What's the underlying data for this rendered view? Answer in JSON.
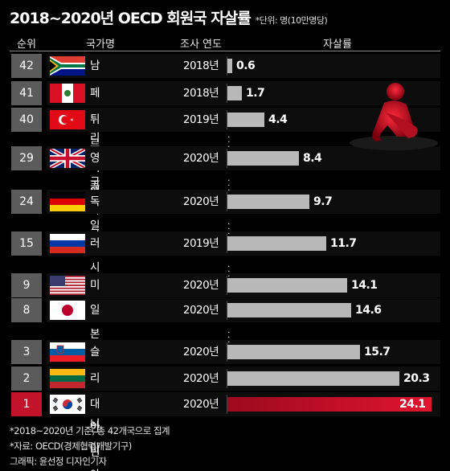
{
  "title": "2018~2020년 OECD 회원국 자살률",
  "unit": "*단위: 명(10만명당)",
  "headers": {
    "rank": "순위",
    "country": "국가명",
    "year": "조사 연도",
    "rate": "자살률"
  },
  "chart_data": {
    "type": "bar",
    "title": "2018~2020년 OECD 회원국 자살률",
    "xlabel": "",
    "ylabel": "자살률",
    "xlim": [
      0,
      24.1
    ],
    "rows": [
      {
        "rank": "42",
        "country": "남아프리카공화국",
        "year": "2018년",
        "value": 0.6,
        "label": "0.6",
        "flag": "south-africa-flag"
      },
      {
        "rank": "41",
        "country": "페루",
        "year": "2018년",
        "value": 1.7,
        "label": "1.7",
        "flag": "peru-flag"
      },
      {
        "rank": "40",
        "country": "튀르키예",
        "year": "2019년",
        "value": 4.4,
        "label": "4.4",
        "flag": "turkey-flag"
      },
      {
        "rank": "29",
        "country": "영국",
        "year": "2020년",
        "value": 8.4,
        "label": "8.4",
        "flag": "uk-flag"
      },
      {
        "rank": "24",
        "country": "독일",
        "year": "2020년",
        "value": 9.7,
        "label": "9.7",
        "flag": "germany-flag"
      },
      {
        "rank": "15",
        "country": "러시아",
        "year": "2019년",
        "value": 11.7,
        "label": "11.7",
        "flag": "russia-flag"
      },
      {
        "rank": "9",
        "country": "미국",
        "year": "2020년",
        "value": 14.1,
        "label": "14.1",
        "flag": "usa-flag"
      },
      {
        "rank": "8",
        "country": "일본",
        "year": "2020년",
        "value": 14.6,
        "label": "14.6",
        "flag": "japan-flag"
      },
      {
        "rank": "3",
        "country": "슬로베니아",
        "year": "2020년",
        "value": 15.7,
        "label": "15.7",
        "flag": "slovenia-flag"
      },
      {
        "rank": "2",
        "country": "리투아니아",
        "year": "2020년",
        "value": 20.3,
        "label": "20.3",
        "flag": "lithuania-flag"
      },
      {
        "rank": "1",
        "country": "대한민국",
        "year": "2020년",
        "value": 24.1,
        "label": "24.1",
        "flag": "korea-flag",
        "highlight": true
      }
    ]
  },
  "colors": {
    "bar": "#b8b8b8",
    "highlight": "#d01228",
    "rank_bg": "#5b5b5b"
  },
  "footnotes": {
    "note1": "*2018~2020년 기준, 총 42개국으로 집계",
    "note2": "*자료: OECD(경제협력개발기구)",
    "note3": "그래픽: 윤선정 디자인기자"
  }
}
